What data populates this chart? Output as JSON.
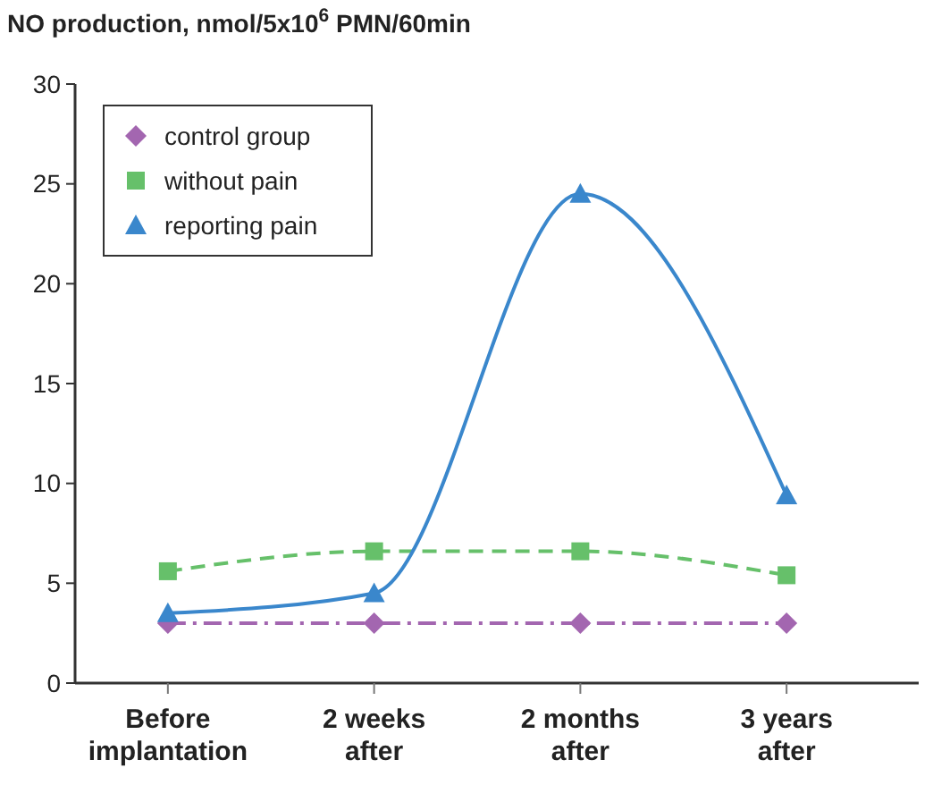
{
  "chart_data": {
    "type": "line",
    "title": "NO production, nmol/5x10$^{6}$ PMN/60min",
    "categories": [
      "Before\nimplantation",
      "2 weeks\nafter",
      "2 months\nafter",
      "3 years\nafter"
    ],
    "series": [
      {
        "name": "control group",
        "color": "#a366b0",
        "values": [
          3,
          3,
          3,
          3
        ],
        "marker": "diamond",
        "line_style": "dashdot"
      },
      {
        "name": "without pain",
        "color": "#66c06a",
        "values": [
          5.6,
          6.6,
          6.6,
          5.4
        ],
        "marker": "square",
        "line_style": "dashed"
      },
      {
        "name": "reporting pain",
        "color": "#3a87cc",
        "values": [
          3.5,
          4.5,
          24.5,
          9.4
        ],
        "marker": "triangle",
        "line_style": "solid"
      }
    ],
    "ylim": [
      0,
      30
    ],
    "yticks": [
      0,
      5,
      10,
      15,
      20,
      25,
      30
    ],
    "grid": false,
    "legend": "top left"
  }
}
